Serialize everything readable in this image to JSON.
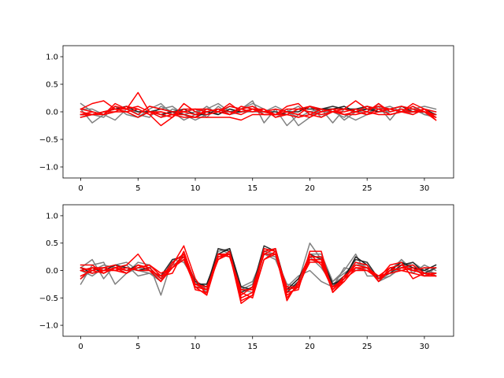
{
  "chart_data": [
    {
      "type": "line",
      "title": "",
      "xlabel": "",
      "ylabel": "",
      "xlim": [
        -1.55,
        32.55
      ],
      "ylim": [
        -1.2,
        1.2
      ],
      "x_ticks": [
        0,
        5,
        10,
        15,
        20,
        25,
        30
      ],
      "x_tick_labels": [
        "0",
        "5",
        "10",
        "15",
        "20",
        "25",
        "30"
      ],
      "y_ticks": [
        -1.0,
        -0.5,
        0.0,
        0.5,
        1.0
      ],
      "y_tick_labels": [
        "−1.0",
        "−0.5",
        "0.0",
        "0.5",
        "1.0"
      ],
      "grid": false,
      "x": [
        0,
        1,
        2,
        3,
        4,
        5,
        6,
        7,
        8,
        9,
        10,
        11,
        12,
        13,
        14,
        15,
        16,
        17,
        18,
        19,
        20,
        21,
        22,
        23,
        24,
        25,
        26,
        27,
        28,
        29,
        30,
        31
      ],
      "series": [
        {
          "color": "#808080",
          "values": [
            0.15,
            0.0,
            -0.05,
            0.1,
            0.05,
            -0.05,
            0.1,
            0.05,
            0.1,
            -0.05,
            0.0,
            0.05,
            0.15,
            0.0,
            0.05,
            0.2,
            -0.2,
            0.05,
            -0.25,
            -0.05,
            0.1,
            -0.1,
            0.05,
            -0.15,
            0.0,
            0.1,
            0.05,
            0.1,
            0.0,
            0.05,
            0.1,
            0.05
          ]
        },
        {
          "color": "#808080",
          "values": [
            0.05,
            -0.2,
            -0.05,
            0.0,
            0.1,
            -0.05,
            -0.1,
            0.1,
            0.0,
            -0.15,
            -0.05,
            0.1,
            -0.05,
            0.1,
            0.05,
            0.15,
            0.05,
            -0.1,
            0.0,
            -0.1,
            0.0,
            0.05,
            -0.2,
            0.05,
            0.05,
            -0.05,
            0.1,
            -0.15,
            0.1,
            0.05,
            -0.05,
            -0.05
          ]
        },
        {
          "color": "#808080",
          "values": [
            -0.1,
            -0.05,
            -0.1,
            0.1,
            -0.05,
            -0.1,
            0.05,
            0.15,
            -0.05,
            -0.05,
            -0.15,
            -0.05,
            0.0,
            0.1,
            0.05,
            0.1,
            -0.05,
            -0.05,
            0.05,
            -0.25,
            -0.1,
            0.05,
            0.05,
            -0.05,
            -0.15,
            -0.05,
            0.15,
            -0.05,
            0.0,
            0.1,
            -0.05,
            -0.1
          ]
        },
        {
          "color": "#808080",
          "values": [
            0.05,
            0.05,
            -0.05,
            -0.15,
            0.05,
            0.0,
            0.0,
            -0.1,
            0.05,
            0.0,
            0.05,
            -0.1,
            0.1,
            -0.05,
            0.0,
            0.0,
            0.0,
            0.1,
            0.0,
            0.1,
            -0.05,
            0.0,
            0.0,
            -0.1,
            0.05,
            0.05,
            0.0,
            0.0,
            0.05,
            -0.05,
            0.05,
            0.0
          ]
        },
        {
          "color": "#303030",
          "values": [
            -0.05,
            -0.05,
            0.0,
            0.05,
            0.0,
            -0.1,
            0.0,
            0.05,
            0.0,
            0.05,
            -0.05,
            -0.05,
            0.05,
            0.0,
            0.0,
            0.05,
            0.0,
            0.0,
            -0.05,
            0.05,
            0.05,
            0.05,
            0.1,
            0.05,
            0.05,
            0.1,
            0.0,
            0.05,
            0.0,
            0.0,
            0.05,
            -0.05
          ]
        },
        {
          "color": "#202020",
          "values": [
            -0.05,
            -0.05,
            0.0,
            0.05,
            0.1,
            0.0,
            0.0,
            -0.05,
            0.0,
            -0.05,
            -0.1,
            0.0,
            -0.05,
            0.05,
            0.0,
            0.05,
            0.0,
            -0.05,
            0.0,
            0.0,
            0.1,
            0.05,
            0.05,
            0.1,
            0.0,
            0.05,
            0.0,
            0.05,
            0.1,
            0.0,
            0.0,
            -0.05
          ]
        },
        {
          "color": "#ff0000",
          "values": [
            0.05,
            0.15,
            0.2,
            0.05,
            0.05,
            0.1,
            0.0,
            -0.1,
            -0.05,
            0.0,
            0.05,
            0.05,
            0.0,
            0.1,
            0.05,
            0.1,
            0.0,
            -0.05,
            0.05,
            0.05,
            0.0,
            -0.05,
            0.0,
            0.05,
            0.2,
            0.05,
            0.1,
            0.05,
            0.1,
            0.05,
            0.0,
            -0.1
          ]
        },
        {
          "color": "#ff0000",
          "values": [
            -0.05,
            0.0,
            -0.05,
            0.15,
            0.05,
            0.35,
            0.0,
            -0.05,
            -0.1,
            0.15,
            0.0,
            -0.05,
            0.0,
            0.15,
            0.0,
            0.05,
            -0.05,
            -0.05,
            0.1,
            0.15,
            -0.05,
            0.05,
            0.0,
            0.0,
            0.05,
            0.0,
            0.15,
            0.0,
            0.05,
            0.0,
            0.05,
            -0.15
          ]
        },
        {
          "color": "#ff0000",
          "values": [
            0.0,
            -0.05,
            0.0,
            0.0,
            0.1,
            0.05,
            -0.05,
            -0.25,
            -0.1,
            0.05,
            0.05,
            0.0,
            0.05,
            -0.05,
            0.05,
            0.0,
            0.05,
            -0.05,
            0.0,
            -0.05,
            -0.1,
            0.0,
            0.05,
            0.05,
            0.0,
            -0.05,
            0.05,
            0.05,
            0.0,
            0.1,
            0.0,
            -0.05
          ]
        },
        {
          "color": "#ff0000",
          "values": [
            -0.1,
            -0.05,
            0.0,
            0.05,
            0.0,
            0.05,
            -0.05,
            0.0,
            -0.05,
            -0.05,
            -0.1,
            0.05,
            0.0,
            -0.05,
            0.1,
            0.05,
            0.05,
            -0.1,
            -0.05,
            0.05,
            0.1,
            0.0,
            0.05,
            -0.05,
            0.0,
            0.1,
            0.05,
            -0.05,
            0.0,
            0.15,
            0.05,
            -0.1
          ]
        },
        {
          "color": "#ff0000",
          "values": [
            0.05,
            0.0,
            -0.05,
            0.1,
            0.05,
            -0.05,
            0.1,
            0.05,
            0.0,
            0.0,
            -0.05,
            0.0,
            0.05,
            0.0,
            -0.05,
            0.05,
            0.0,
            0.05,
            0.0,
            -0.05,
            0.1,
            0.05,
            0.0,
            0.05,
            0.0,
            -0.05,
            0.0,
            0.05,
            0.0,
            -0.05,
            0.05,
            0.0
          ]
        },
        {
          "color": "#ff0000",
          "values": [
            -0.05,
            -0.05,
            -0.05,
            0.0,
            0.0,
            -0.1,
            0.0,
            0.0,
            -0.05,
            -0.1,
            -0.1,
            -0.1,
            -0.1,
            -0.1,
            -0.15,
            -0.05,
            -0.05,
            -0.05,
            -0.05,
            -0.1,
            -0.05,
            -0.1,
            0.0,
            -0.05,
            -0.05,
            0.0,
            -0.05,
            -0.05,
            0.0,
            0.0,
            0.0,
            -0.15
          ]
        }
      ]
    },
    {
      "type": "line",
      "title": "",
      "xlabel": "",
      "ylabel": "",
      "xlim": [
        -1.55,
        32.55
      ],
      "ylim": [
        -1.2,
        1.2
      ],
      "x_ticks": [
        0,
        5,
        10,
        15,
        20,
        25,
        30
      ],
      "x_tick_labels": [
        "0",
        "5",
        "10",
        "15",
        "20",
        "25",
        "30"
      ],
      "y_ticks": [
        -1.0,
        -0.5,
        0.0,
        0.5,
        1.0
      ],
      "y_tick_labels": [
        "−1.0",
        "−0.5",
        "0.0",
        "0.5",
        "1.0"
      ],
      "grid": false,
      "x": [
        0,
        1,
        2,
        3,
        4,
        5,
        6,
        7,
        8,
        9,
        10,
        11,
        12,
        13,
        14,
        15,
        16,
        17,
        18,
        19,
        20,
        21,
        22,
        23,
        24,
        25,
        26,
        27,
        28,
        29,
        30,
        31
      ],
      "series": [
        {
          "color": "#808080",
          "values": [
            -0.25,
            0.1,
            0.15,
            -0.25,
            -0.05,
            0.15,
            0.1,
            -0.45,
            0.2,
            0.25,
            -0.3,
            -0.3,
            0.35,
            0.4,
            -0.35,
            -0.25,
            0.35,
            0.3,
            -0.4,
            -0.2,
            0.5,
            0.2,
            -0.2,
            0.0,
            0.3,
            -0.1,
            -0.1,
            -0.05,
            0.2,
            0.0,
            0.05,
            -0.1
          ]
        },
        {
          "color": "#808080",
          "values": [
            0.05,
            0.2,
            -0.15,
            0.1,
            0.15,
            0.0,
            -0.05,
            -0.2,
            0.2,
            0.15,
            -0.2,
            -0.35,
            0.4,
            0.3,
            -0.4,
            -0.3,
            0.4,
            0.35,
            -0.35,
            -0.25,
            0.25,
            0.05,
            -0.25,
            -0.1,
            0.15,
            0.05,
            -0.2,
            -0.1,
            0.1,
            0.1,
            -0.1,
            0.05
          ]
        },
        {
          "color": "#808080",
          "values": [
            0.0,
            -0.1,
            0.05,
            0.0,
            0.1,
            -0.1,
            -0.05,
            -0.1,
            0.1,
            0.2,
            -0.25,
            -0.25,
            0.3,
            0.25,
            -0.3,
            -0.2,
            0.3,
            0.2,
            -0.3,
            -0.1,
            0.0,
            -0.2,
            -0.3,
            0.05,
            0.0,
            0.05,
            -0.15,
            -0.1,
            0.05,
            0.15,
            0.0,
            -0.05
          ]
        },
        {
          "color": "#808080",
          "values": [
            -0.15,
            0.0,
            0.1,
            0.05,
            -0.05,
            0.05,
            0.0,
            -0.15,
            0.15,
            0.3,
            -0.2,
            -0.4,
            0.25,
            0.3,
            -0.35,
            -0.4,
            0.3,
            0.25,
            -0.25,
            -0.3,
            0.3,
            0.3,
            -0.2,
            -0.05,
            0.1,
            0.1,
            -0.15,
            0.0,
            0.2,
            -0.05,
            0.1,
            0.0
          ]
        },
        {
          "color": "#303030",
          "values": [
            0.0,
            0.05,
            -0.05,
            0.05,
            0.0,
            0.1,
            0.0,
            -0.1,
            0.2,
            0.25,
            -0.2,
            -0.3,
            0.4,
            0.35,
            -0.4,
            -0.3,
            0.45,
            0.35,
            -0.4,
            -0.2,
            0.3,
            0.2,
            -0.3,
            -0.1,
            0.2,
            0.15,
            -0.15,
            -0.05,
            0.1,
            0.15,
            -0.05,
            0.05
          ]
        },
        {
          "color": "#202020",
          "values": [
            0.05,
            -0.05,
            0.0,
            0.1,
            0.05,
            0.0,
            0.05,
            -0.15,
            0.15,
            0.3,
            -0.25,
            -0.25,
            0.3,
            0.4,
            -0.3,
            -0.35,
            0.35,
            0.4,
            -0.35,
            -0.15,
            0.25,
            0.25,
            -0.25,
            -0.15,
            0.25,
            0.1,
            -0.2,
            0.0,
            0.15,
            0.05,
            0.0,
            0.1
          ]
        },
        {
          "color": "#ff0000",
          "values": [
            0.1,
            0.1,
            -0.05,
            0.05,
            0.1,
            0.3,
            0.0,
            -0.2,
            0.1,
            0.45,
            -0.15,
            -0.45,
            0.3,
            0.25,
            -0.45,
            -0.3,
            0.3,
            0.4,
            -0.45,
            -0.3,
            0.2,
            0.2,
            -0.4,
            -0.2,
            0.05,
            0.0,
            -0.15,
            0.1,
            0.15,
            -0.15,
            -0.05,
            -0.1
          ]
        },
        {
          "color": "#ff0000",
          "values": [
            -0.1,
            0.0,
            0.05,
            0.1,
            0.0,
            0.05,
            0.1,
            -0.1,
            -0.05,
            0.35,
            -0.25,
            -0.35,
            0.2,
            0.35,
            -0.5,
            -0.4,
            0.4,
            0.35,
            -0.55,
            -0.2,
            0.3,
            0.1,
            -0.35,
            -0.15,
            0.1,
            0.05,
            -0.2,
            0.05,
            0.1,
            0.0,
            0.05,
            0.05
          ]
        },
        {
          "color": "#ff0000",
          "values": [
            0.0,
            0.05,
            0.0,
            0.05,
            -0.05,
            0.1,
            0.05,
            -0.15,
            0.15,
            0.3,
            -0.35,
            -0.4,
            0.3,
            0.3,
            -0.6,
            -0.45,
            0.35,
            0.4,
            -0.4,
            -0.35,
            0.35,
            0.35,
            -0.4,
            -0.15,
            0.15,
            0.1,
            -0.2,
            0.0,
            0.05,
            0.1,
            -0.05,
            -0.1
          ]
        },
        {
          "color": "#ff0000",
          "values": [
            -0.15,
            0.05,
            0.05,
            0.0,
            0.05,
            0.0,
            0.0,
            -0.2,
            0.05,
            0.3,
            -0.3,
            -0.45,
            0.25,
            0.3,
            -0.55,
            -0.45,
            0.2,
            0.3,
            -0.5,
            -0.25,
            0.15,
            0.15,
            -0.3,
            -0.2,
            0.05,
            0.0,
            -0.1,
            0.05,
            0.0,
            -0.05,
            -0.1,
            -0.1
          ]
        },
        {
          "color": "#ff0000",
          "values": [
            0.05,
            0.0,
            -0.05,
            0.05,
            0.0,
            0.05,
            0.1,
            -0.05,
            0.05,
            0.2,
            -0.3,
            -0.35,
            0.3,
            0.25,
            -0.35,
            -0.35,
            0.3,
            0.3,
            -0.3,
            -0.3,
            0.25,
            0.25,
            -0.35,
            -0.1,
            0.05,
            0.05,
            -0.1,
            -0.05,
            0.0,
            0.05,
            -0.1,
            -0.05
          ]
        },
        {
          "color": "#ff0000",
          "values": [
            0.0,
            -0.05,
            0.0,
            0.0,
            -0.05,
            0.1,
            0.0,
            -0.1,
            0.05,
            0.25,
            -0.25,
            -0.3,
            0.2,
            0.3,
            -0.4,
            -0.5,
            0.2,
            0.35,
            -0.35,
            -0.3,
            0.2,
            0.15,
            -0.3,
            -0.15,
            0.0,
            0.0,
            -0.15,
            0.0,
            0.05,
            0.0,
            -0.05,
            -0.05
          ]
        }
      ]
    }
  ]
}
